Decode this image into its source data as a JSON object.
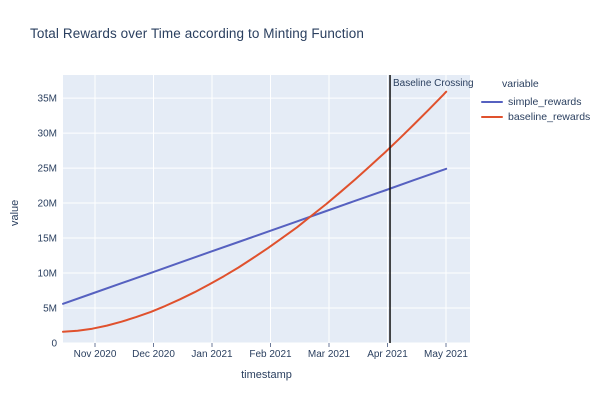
{
  "chart_data": {
    "type": "line",
    "title": "Total Rewards over Time according to Minting Function",
    "xlabel": "timestamp",
    "ylabel": "value",
    "value_unit": "millions",
    "x_axis_unit": "months since mid-Oct 2020",
    "x_domain": [
      0,
      6.957
    ],
    "y_domain": [
      0,
      38.3
    ],
    "grid": true,
    "legend_position": "right",
    "plot_bg": "#E5ECF6",
    "grid_color": "#FFFFFF",
    "text_color": "#2A3F5F",
    "tick_color": "#6B7A99",
    "x_ticks": [
      {
        "label": "Nov 2020",
        "t": 0.547
      },
      {
        "label": "Dec 2020",
        "t": 1.547
      },
      {
        "label": "Jan 2021",
        "t": 2.547
      },
      {
        "label": "Feb 2021",
        "t": 3.547
      },
      {
        "label": "Mar 2021",
        "t": 4.547
      },
      {
        "label": "Apr 2021",
        "t": 5.547
      },
      {
        "label": "May 2021",
        "t": 6.547
      }
    ],
    "y_ticks": [
      {
        "label": "0",
        "v": 0
      },
      {
        "label": "5M",
        "v": 5
      },
      {
        "label": "10M",
        "v": 10
      },
      {
        "label": "15M",
        "v": 15
      },
      {
        "label": "20M",
        "v": 20
      },
      {
        "label": "25M",
        "v": 25
      },
      {
        "label": "30M",
        "v": 30
      },
      {
        "label": "35M",
        "v": 35
      }
    ],
    "legend_title": "variable",
    "series": [
      {
        "name": "simple_rewards",
        "color": "#5661C0",
        "points": [
          [
            0,
            5.6
          ],
          [
            0.5,
            7.07
          ],
          [
            1,
            8.55
          ],
          [
            1.5,
            10.02
          ],
          [
            2,
            11.49
          ],
          [
            2.5,
            12.97
          ],
          [
            3,
            14.44
          ],
          [
            3.5,
            15.91
          ],
          [
            4,
            17.38
          ],
          [
            4.5,
            18.86
          ],
          [
            5,
            20.33
          ],
          [
            5.5,
            21.8
          ],
          [
            6,
            23.28
          ],
          [
            6.55,
            24.9
          ]
        ]
      },
      {
        "name": "baseline_rewards",
        "color": "#E0512D",
        "points": [
          [
            0,
            1.6
          ],
          [
            0.25,
            1.74
          ],
          [
            0.5,
            2.05
          ],
          [
            0.75,
            2.49
          ],
          [
            1,
            3.04
          ],
          [
            1.25,
            3.7
          ],
          [
            1.5,
            4.45
          ],
          [
            1.75,
            5.3
          ],
          [
            2,
            6.24
          ],
          [
            2.25,
            7.26
          ],
          [
            2.5,
            8.37
          ],
          [
            2.75,
            9.55
          ],
          [
            3,
            10.79
          ],
          [
            3.25,
            12.15
          ],
          [
            3.5,
            13.55
          ],
          [
            3.75,
            15.03
          ],
          [
            4,
            16.53
          ],
          [
            4.25,
            18.2
          ],
          [
            4.5,
            19.87
          ],
          [
            4.75,
            21.62
          ],
          [
            5,
            23.43
          ],
          [
            5.25,
            25.29
          ],
          [
            5.5,
            27.21
          ],
          [
            5.75,
            29.19
          ],
          [
            6,
            31.24
          ],
          [
            6.25,
            33.32
          ],
          [
            6.5,
            35.47
          ],
          [
            6.55,
            35.91
          ]
        ]
      }
    ],
    "vline": {
      "t": 5.59,
      "label": "Baseline Crossing",
      "color": "#111111"
    }
  }
}
